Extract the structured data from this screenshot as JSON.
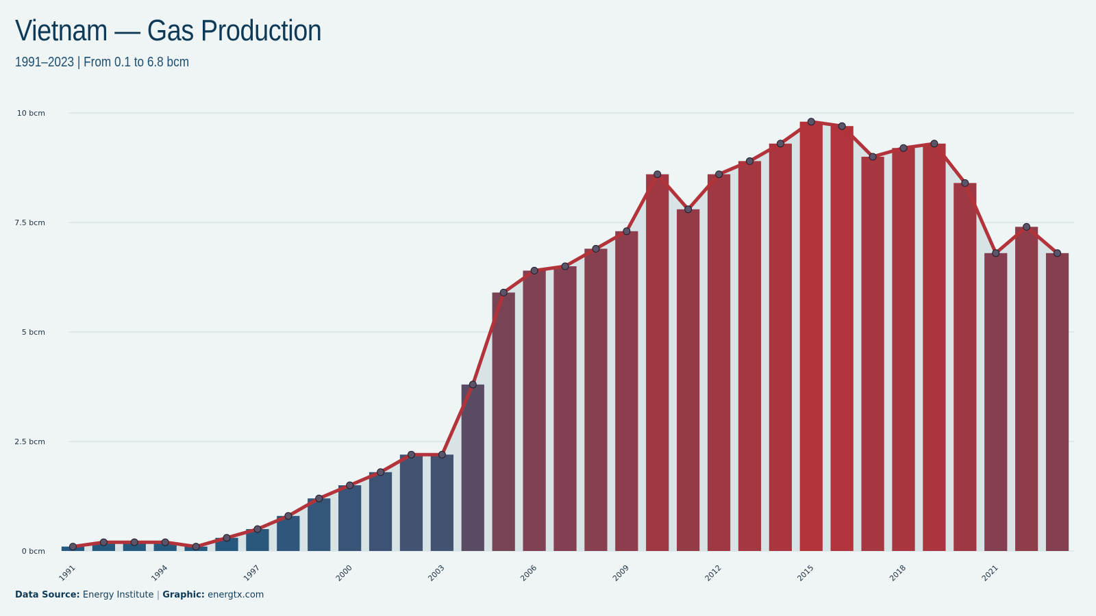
{
  "title": "Vietnam — Gas Production",
  "subtitle": "1991–2023 | From 0.1 to 6.8 bcm",
  "footer": {
    "source_label": "Data Source:",
    "source_value": "Energy Institute",
    "separator": "|",
    "graphic_label": "Graphic:",
    "graphic_value": "energtx.com"
  },
  "chart_data": {
    "type": "bar",
    "unit": "bcm",
    "x": [
      1991,
      1992,
      1993,
      1994,
      1995,
      1996,
      1997,
      1998,
      1999,
      2000,
      2001,
      2002,
      2003,
      2004,
      2005,
      2006,
      2007,
      2008,
      2009,
      2010,
      2011,
      2012,
      2013,
      2014,
      2015,
      2016,
      2017,
      2018,
      2019,
      2020,
      2021,
      2022,
      2023
    ],
    "values": [
      0.1,
      0.2,
      0.2,
      0.2,
      0.1,
      0.3,
      0.5,
      0.8,
      1.2,
      1.5,
      1.8,
      2.2,
      2.2,
      3.8,
      5.9,
      6.4,
      6.5,
      6.9,
      7.3,
      8.6,
      7.8,
      8.6,
      8.9,
      9.3,
      9.8,
      9.7,
      9.0,
      9.2,
      9.3,
      8.4,
      6.8,
      7.4,
      6.8
    ],
    "overlay": "line with point markers through the same values, shaded area below",
    "x_tick_labels": [
      "1991",
      "1994",
      "1997",
      "2000",
      "2003",
      "2006",
      "2009",
      "2012",
      "2015",
      "2018",
      "2021"
    ],
    "y_ticks": [
      0,
      2.5,
      5,
      7.5,
      10
    ],
    "y_tick_labels": [
      "0 bcm",
      "2.5 bcm",
      "5 bcm",
      "7.5 bcm",
      "10 bcm"
    ],
    "ylim": [
      0,
      10
    ],
    "grid": "horizontal",
    "colors": {
      "low": "#245a80",
      "high": "#b2333a",
      "line": "#b2343a",
      "area": "#d8e3e6",
      "marker": "#5c5468",
      "grid": "#d4e0e3"
    }
  }
}
